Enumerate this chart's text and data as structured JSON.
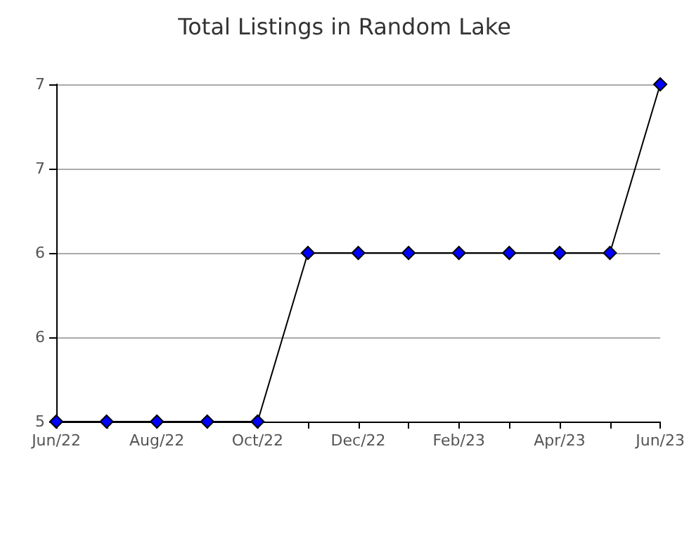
{
  "chart_data": {
    "type": "line",
    "title": "Total Listings in Random Lake",
    "categories": [
      "Jun/22",
      null,
      "Aug/22",
      null,
      "Oct/22",
      null,
      "Dec/22",
      null,
      "Feb/23",
      null,
      "Apr/23",
      null,
      "Jun/23"
    ],
    "series": [
      {
        "color": "#0000ff",
        "values": [
          5,
          5,
          5,
          5,
          5,
          6,
          6,
          6,
          6,
          6,
          6,
          6,
          7
        ]
      }
    ],
    "ylim": [
      5,
      7
    ],
    "yticks": [
      5,
      {
        "value": 5.5,
        "label": "6"
      },
      6,
      {
        "value": 6.5,
        "label": "7"
      },
      7
    ],
    "grid": "y",
    "marker": "diamond",
    "line_style": "solid"
  }
}
